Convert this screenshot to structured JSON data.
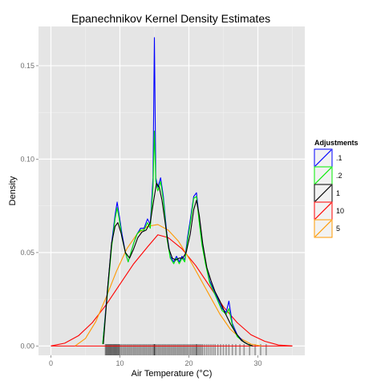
{
  "chart_data": {
    "type": "line",
    "title": "Epanechnikov Kernel Density Estimates",
    "xlabel": "Air Temperature (°C)",
    "ylabel": "Density",
    "xlim": [
      -1.8,
      36.8
    ],
    "ylim": [
      -0.005,
      0.171
    ],
    "x_ticks": [
      0,
      10,
      20,
      30
    ],
    "x_tick_labels": [
      "0",
      "10",
      "20",
      "30"
    ],
    "y_ticks": [
      0.0,
      0.05,
      0.1,
      0.15
    ],
    "y_tick_labels": [
      "0.00",
      "0.05",
      "0.10",
      "0.15"
    ],
    "grid": true,
    "legend": {
      "title": "Adjustments",
      "position": "right",
      "entries": [
        {
          "label": ".1",
          "color": "#0000ff"
        },
        {
          "label": ".2",
          "color": "#00ee00"
        },
        {
          "label": "1",
          "color": "#000000"
        },
        {
          "label": "10",
          "color": "#ff0000"
        },
        {
          "label": "5",
          "color": "#ff9900"
        }
      ]
    },
    "series": [
      {
        "name": ".1",
        "color": "#0000ff",
        "x": [
          7.5,
          8.2,
          8.8,
          9.3,
          9.6,
          9.9,
          10.3,
          10.8,
          11.2,
          11.6,
          12.0,
          12.5,
          13.0,
          13.5,
          14.0,
          14.4,
          14.8,
          15.0,
          15.2,
          15.5,
          15.9,
          16.3,
          16.8,
          17.3,
          17.8,
          18.2,
          18.6,
          19.0,
          19.4,
          19.8,
          20.3,
          20.7,
          21.1,
          21.5,
          21.9,
          22.4,
          23.0,
          23.6,
          24.2,
          24.8,
          25.4,
          25.8,
          26.3,
          27.0,
          28.0,
          29.0
        ],
        "y": [
          0.001,
          0.03,
          0.055,
          0.07,
          0.077,
          0.07,
          0.06,
          0.05,
          0.045,
          0.05,
          0.055,
          0.06,
          0.063,
          0.063,
          0.068,
          0.065,
          0.09,
          0.165,
          0.09,
          0.085,
          0.09,
          0.08,
          0.06,
          0.048,
          0.045,
          0.048,
          0.045,
          0.048,
          0.046,
          0.058,
          0.07,
          0.08,
          0.082,
          0.068,
          0.055,
          0.045,
          0.035,
          0.03,
          0.025,
          0.02,
          0.018,
          0.024,
          0.012,
          0.006,
          0.002,
          0.0
        ]
      },
      {
        "name": ".2",
        "color": "#00ee00",
        "x": [
          7.5,
          8.2,
          8.8,
          9.3,
          9.6,
          9.9,
          10.3,
          10.8,
          11.2,
          11.6,
          12.0,
          12.5,
          13.0,
          13.5,
          14.0,
          14.4,
          14.8,
          15.0,
          15.2,
          15.5,
          15.9,
          16.3,
          16.8,
          17.3,
          17.8,
          18.2,
          18.6,
          19.0,
          19.4,
          19.8,
          20.3,
          20.7,
          21.1,
          21.5,
          21.9,
          22.4,
          23.0,
          23.6,
          24.2,
          24.8,
          25.4,
          25.8,
          26.3,
          27.0,
          28.0,
          29.0
        ],
        "y": [
          0.001,
          0.028,
          0.053,
          0.068,
          0.074,
          0.068,
          0.058,
          0.05,
          0.045,
          0.05,
          0.055,
          0.06,
          0.062,
          0.062,
          0.066,
          0.063,
          0.085,
          0.115,
          0.088,
          0.083,
          0.088,
          0.078,
          0.058,
          0.047,
          0.044,
          0.047,
          0.044,
          0.047,
          0.045,
          0.056,
          0.068,
          0.079,
          0.08,
          0.066,
          0.054,
          0.044,
          0.034,
          0.029,
          0.024,
          0.019,
          0.017,
          0.02,
          0.011,
          0.005,
          0.002,
          0.0
        ]
      },
      {
        "name": "1",
        "color": "#000000",
        "x": [
          7.6,
          8.2,
          8.8,
          9.3,
          9.7,
          10.2,
          10.8,
          11.4,
          12.0,
          12.6,
          13.2,
          13.8,
          14.4,
          14.9,
          15.3,
          15.7,
          16.1,
          16.6,
          17.1,
          17.6,
          18.1,
          18.6,
          19.1,
          19.6,
          20.2,
          20.7,
          21.1,
          21.5,
          22.0,
          22.6,
          23.2,
          23.8,
          24.5,
          25.2,
          26.0,
          26.8,
          27.6,
          28.5,
          29.3
        ],
        "y": [
          0.001,
          0.03,
          0.055,
          0.064,
          0.066,
          0.06,
          0.05,
          0.047,
          0.052,
          0.058,
          0.061,
          0.062,
          0.066,
          0.078,
          0.087,
          0.085,
          0.078,
          0.065,
          0.052,
          0.047,
          0.046,
          0.047,
          0.047,
          0.05,
          0.06,
          0.073,
          0.078,
          0.07,
          0.055,
          0.042,
          0.035,
          0.029,
          0.024,
          0.018,
          0.012,
          0.007,
          0.003,
          0.001,
          0.0
        ]
      },
      {
        "name": "10",
        "color": "#ff0000",
        "x": [
          0,
          2,
          4,
          6,
          8,
          10,
          12,
          14,
          15.5,
          17,
          19,
          21,
          23,
          25,
          27,
          29,
          31,
          33,
          35
        ],
        "y": [
          0.0,
          0.0015,
          0.0055,
          0.0125,
          0.022,
          0.033,
          0.044,
          0.053,
          0.0595,
          0.058,
          0.052,
          0.043,
          0.032,
          0.021,
          0.0125,
          0.006,
          0.0025,
          0.0005,
          0.0
        ]
      },
      {
        "name": "5",
        "color": "#ff9900",
        "x": [
          3.5,
          5.0,
          6.5,
          8.0,
          9.5,
          11.0,
          12.5,
          14.0,
          15.5,
          17.0,
          18.5,
          20.0,
          21.5,
          23.0,
          24.5,
          26.0,
          27.5,
          29.0,
          30.5
        ],
        "y": [
          0.0,
          0.004,
          0.013,
          0.026,
          0.04,
          0.052,
          0.06,
          0.064,
          0.065,
          0.062,
          0.056,
          0.047,
          0.037,
          0.027,
          0.017,
          0.009,
          0.004,
          0.001,
          0.0
        ]
      }
    ],
    "rug": {
      "color": "#000000",
      "values": [
        7.9,
        8.0,
        8.1,
        8.2,
        8.3,
        8.4,
        8.5,
        8.6,
        8.7,
        8.8,
        8.9,
        9.0,
        9.1,
        9.2,
        9.3,
        9.4,
        9.5,
        9.6,
        9.7,
        9.8,
        9.9,
        10.0,
        10.2,
        10.4,
        10.6,
        10.8,
        11.0,
        11.2,
        11.4,
        11.6,
        11.8,
        12.0,
        12.2,
        12.4,
        12.6,
        12.8,
        13.0,
        13.2,
        13.4,
        13.6,
        13.8,
        14.0,
        14.2,
        14.4,
        14.6,
        14.8,
        15.0,
        15.0,
        15.0,
        15.2,
        15.4,
        15.6,
        15.8,
        16.0,
        16.2,
        16.4,
        16.6,
        16.8,
        17.0,
        17.2,
        17.4,
        17.6,
        17.8,
        18.0,
        18.2,
        18.4,
        18.6,
        18.8,
        19.0,
        19.2,
        19.4,
        19.6,
        19.8,
        20.0,
        20.2,
        20.4,
        20.6,
        20.8,
        21.0,
        21.1,
        21.2,
        21.4,
        21.6,
        21.8,
        22.0,
        22.3,
        22.6,
        22.9,
        23.2,
        23.5,
        23.8,
        24.2,
        24.6,
        25.0,
        25.4,
        25.8,
        26.3,
        26.8,
        27.4,
        28.0,
        28.8,
        29.6,
        30.4,
        31.2
      ]
    }
  }
}
